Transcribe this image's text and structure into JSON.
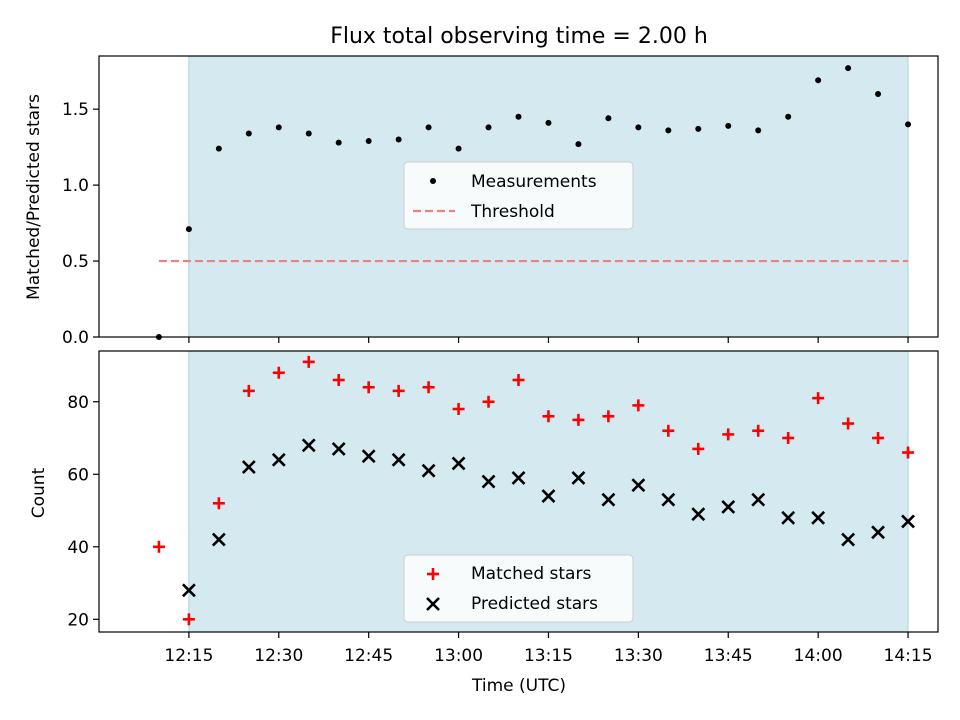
{
  "chart_data": [
    {
      "type": "scatter",
      "title": "Flux total observing time = 2.00 h",
      "xlabel": "",
      "ylabel": "Matched/Predicted stars",
      "x_tick_labels": [
        "12:15",
        "12:30",
        "12:45",
        "13:00",
        "13:15",
        "13:30",
        "13:45",
        "14:00",
        "14:15"
      ],
      "x_tick_values": [
        735,
        750,
        765,
        780,
        795,
        810,
        825,
        840,
        855
      ],
      "xlim": [
        "12:00",
        "14:20"
      ],
      "ylim": [
        0,
        1.85
      ],
      "y_ticks": [
        0.0,
        0.5,
        1.0,
        1.5
      ],
      "y_tick_labels": [
        "0.0",
        "0.5",
        "1.0",
        "1.5"
      ],
      "shaded_region": {
        "x": [
          "12:15",
          "14:15"
        ],
        "color": "#d4eaf0"
      },
      "legend": {
        "position": "center",
        "entries": [
          "Measurements",
          "Threshold"
        ]
      },
      "series": [
        {
          "name": "Measurements",
          "marker": "dot",
          "color": "#000000",
          "x": [
            "12:10",
            "12:15",
            "12:20",
            "12:25",
            "12:30",
            "12:35",
            "12:40",
            "12:45",
            "12:50",
            "12:55",
            "13:00",
            "13:05",
            "13:10",
            "13:15",
            "13:20",
            "13:25",
            "13:30",
            "13:35",
            "13:40",
            "13:45",
            "13:50",
            "13:55",
            "14:00",
            "14:05",
            "14:10",
            "14:15"
          ],
          "y": [
            0.0,
            0.71,
            1.24,
            1.34,
            1.38,
            1.34,
            1.28,
            1.29,
            1.3,
            1.38,
            1.24,
            1.38,
            1.45,
            1.41,
            1.27,
            1.44,
            1.38,
            1.36,
            1.37,
            1.39,
            1.36,
            1.45,
            1.69,
            1.77,
            1.6,
            1.4
          ]
        },
        {
          "name": "Threshold",
          "marker": "dashed-line",
          "color": "#f08080",
          "x": [
            "12:10",
            "14:15"
          ],
          "y": [
            0.5,
            0.5
          ]
        }
      ]
    },
    {
      "type": "scatter",
      "title": "",
      "xlabel": "Time (UTC)",
      "ylabel": "Count",
      "x_tick_labels": [
        "12:15",
        "12:30",
        "12:45",
        "13:00",
        "13:15",
        "13:30",
        "13:45",
        "14:00",
        "14:15"
      ],
      "x_tick_values": [
        735,
        750,
        765,
        780,
        795,
        810,
        825,
        840,
        855
      ],
      "xlim": [
        "12:00",
        "14:20"
      ],
      "ylim": [
        16.5,
        94
      ],
      "y_ticks": [
        20,
        40,
        60,
        80
      ],
      "y_tick_labels": [
        "20",
        "40",
        "60",
        "80"
      ],
      "shaded_region": {
        "x": [
          "12:15",
          "14:15"
        ],
        "color": "#d4eaf0"
      },
      "legend": {
        "position": "bottom-center",
        "entries": [
          "Matched stars",
          "Predicted stars"
        ]
      },
      "series": [
        {
          "name": "Matched stars",
          "marker": "plus",
          "color": "#ff0000",
          "x": [
            "12:10",
            "12:15",
            "12:20",
            "12:25",
            "12:30",
            "12:35",
            "12:40",
            "12:45",
            "12:50",
            "12:55",
            "13:00",
            "13:05",
            "13:10",
            "13:15",
            "13:20",
            "13:25",
            "13:30",
            "13:35",
            "13:40",
            "13:45",
            "13:50",
            "13:55",
            "14:00",
            "14:05",
            "14:10",
            "14:15"
          ],
          "y": [
            40,
            20,
            52,
            83,
            88,
            91,
            86,
            84,
            83,
            84,
            78,
            80,
            86,
            76,
            75,
            76,
            79,
            72,
            67,
            71,
            72,
            70,
            81,
            74,
            70,
            66
          ]
        },
        {
          "name": "Predicted stars",
          "marker": "x",
          "color": "#000000",
          "x": [
            "12:15",
            "12:20",
            "12:25",
            "12:30",
            "12:35",
            "12:40",
            "12:45",
            "12:50",
            "12:55",
            "13:00",
            "13:05",
            "13:10",
            "13:15",
            "13:20",
            "13:25",
            "13:30",
            "13:35",
            "13:40",
            "13:45",
            "13:50",
            "13:55",
            "14:00",
            "14:05",
            "14:10",
            "14:15"
          ],
          "y": [
            28,
            42,
            62,
            64,
            68,
            67,
            65,
            64,
            61,
            63,
            58,
            59,
            54,
            59,
            53,
            57,
            53,
            49,
            51,
            53,
            48,
            48,
            42,
            44,
            47
          ]
        }
      ]
    }
  ]
}
